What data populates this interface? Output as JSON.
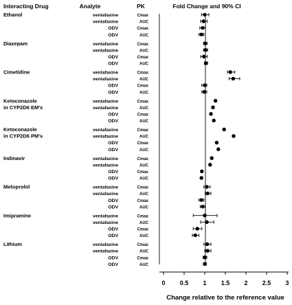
{
  "chart_data": {
    "type": "forest",
    "title": "Fold Change and 90% CI",
    "column_headers": {
      "drug": "Interacting Drug",
      "analyte": "Analyte",
      "pk": "PK",
      "effect": "Fold Change and 90% CI"
    },
    "xlabel": "Change relative to the reference value",
    "xlim": [
      0,
      3
    ],
    "xticks": [
      0,
      0.5,
      1,
      1.5,
      2,
      2.5,
      3
    ],
    "xtick_labels": [
      "0",
      "0.5",
      "1",
      "1.5",
      "2",
      "2.5",
      "3"
    ],
    "reference_line": 1,
    "groups": [
      {
        "drug": [
          "Ethanol"
        ],
        "rows": [
          {
            "analyte": "venlafaxine",
            "pk": "Cmax",
            "value": 1.0,
            "lo": 0.92,
            "hi": 1.1
          },
          {
            "analyte": "venlafaxine",
            "pk": "AUC",
            "value": 0.97,
            "lo": 0.9,
            "hi": 1.06
          },
          {
            "analyte": "ODV",
            "pk": "Cmax",
            "value": 0.95,
            "lo": 0.88,
            "hi": 1.02
          },
          {
            "analyte": "ODV",
            "pk": "AUC",
            "value": 0.92,
            "lo": 0.86,
            "hi": 0.98
          }
        ]
      },
      {
        "drug": [
          "Diazepam"
        ],
        "rows": [
          {
            "analyte": "venlafaxine",
            "pk": "Cmax",
            "value": 1.01,
            "lo": 0.97,
            "hi": 1.06
          },
          {
            "analyte": "venlafaxine",
            "pk": "AUC",
            "value": 1.02,
            "lo": 0.97,
            "hi": 1.07
          },
          {
            "analyte": "ODV",
            "pk": "Cmax",
            "value": 0.98,
            "lo": 0.9,
            "hi": 1.06
          },
          {
            "analyte": "ODV",
            "pk": "AUC",
            "value": 1.03,
            "lo": 0.99,
            "hi": 1.07
          }
        ]
      },
      {
        "drug": [
          "Cimetidine"
        ],
        "rows": [
          {
            "analyte": "venlafaxine",
            "pk": "Cmax",
            "value": 1.62,
            "lo": 1.55,
            "hi": 1.73
          },
          {
            "analyte": "venlafaxine",
            "pk": "AUC",
            "value": 1.69,
            "lo": 1.59,
            "hi": 1.85
          },
          {
            "analyte": "ODV",
            "pk": "Cmax",
            "value": 1.0,
            "lo": 0.93,
            "hi": 1.05
          },
          {
            "analyte": "ODV",
            "pk": "AUC",
            "value": 0.99,
            "lo": 0.93,
            "hi": 1.05
          }
        ]
      },
      {
        "drug": [
          "Ketoconazole",
          "in CYP2D6 EM's"
        ],
        "rows": [
          {
            "analyte": "venlafaxine",
            "pk": "Cmax",
            "value": 1.26,
            "lo": 1.24,
            "hi": 1.28
          },
          {
            "analyte": "venlafaxine",
            "pk": "AUC",
            "value": 1.2,
            "lo": 1.18,
            "hi": 1.22
          },
          {
            "analyte": "ODV",
            "pk": "Cmax",
            "value": 1.15,
            "lo": 1.13,
            "hi": 1.17
          },
          {
            "analyte": "ODV",
            "pk": "AUC",
            "value": 1.22,
            "lo": 1.2,
            "hi": 1.24
          }
        ]
      },
      {
        "drug": [
          "Ketoconazole",
          "in CYP2D6 PM's"
        ],
        "rows": [
          {
            "analyte": "venlafaxine",
            "pk": "Cmax",
            "value": 1.47,
            "lo": 1.45,
            "hi": 1.49
          },
          {
            "analyte": "venlafaxine",
            "pk": "AUC",
            "value": 1.7,
            "lo": 1.68,
            "hi": 1.72
          },
          {
            "analyte": "ODV",
            "pk": "Cmax",
            "value": 1.29,
            "lo": 1.27,
            "hi": 1.31
          },
          {
            "analyte": "ODV",
            "pk": "AUC",
            "value": 1.33,
            "lo": 1.31,
            "hi": 1.35
          }
        ]
      },
      {
        "drug": [
          "Indinavir"
        ],
        "rows": [
          {
            "analyte": "venlafaxine",
            "pk": "Cmax",
            "value": 1.17,
            "lo": 1.15,
            "hi": 1.19
          },
          {
            "analyte": "venlafaxine",
            "pk": "AUC",
            "value": 1.13,
            "lo": 1.11,
            "hi": 1.15
          },
          {
            "analyte": "ODV",
            "pk": "Cmax",
            "value": 0.93,
            "lo": 0.91,
            "hi": 0.95
          },
          {
            "analyte": "ODV",
            "pk": "AUC",
            "value": 0.92,
            "lo": 0.9,
            "hi": 0.94
          }
        ]
      },
      {
        "drug": [
          "Metoprolol"
        ],
        "rows": [
          {
            "analyte": "venlafaxine",
            "pk": "Cmax",
            "value": 1.05,
            "lo": 0.98,
            "hi": 1.13
          },
          {
            "analyte": "venlafaxine",
            "pk": "AUC",
            "value": 1.07,
            "lo": 1.01,
            "hi": 1.15
          },
          {
            "analyte": "ODV",
            "pk": "Cmax",
            "value": 0.92,
            "lo": 0.86,
            "hi": 0.98
          },
          {
            "analyte": "ODV",
            "pk": "AUC",
            "value": 0.95,
            "lo": 0.89,
            "hi": 1.01
          }
        ]
      },
      {
        "drug": [
          "Imipramine"
        ],
        "rows": [
          {
            "analyte": "venlafaxine",
            "pk": "Cmax",
            "value": 1.0,
            "lo": 0.72,
            "hi": 1.3
          },
          {
            "analyte": "venlafaxine",
            "pk": "AUC",
            "value": 1.05,
            "lo": 0.9,
            "hi": 1.22
          },
          {
            "analyte": "ODV",
            "pk": "Cmax",
            "value": 0.82,
            "lo": 0.72,
            "hi": 0.93
          },
          {
            "analyte": "ODV",
            "pk": "AUC",
            "value": 0.77,
            "lo": 0.7,
            "hi": 0.86
          }
        ]
      },
      {
        "drug": [
          "Lithium"
        ],
        "rows": [
          {
            "analyte": "venlafaxine",
            "pk": "Cmax",
            "value": 1.06,
            "lo": 0.98,
            "hi": 1.15
          },
          {
            "analyte": "venlafaxine",
            "pk": "AUC",
            "value": 1.07,
            "lo": 1.0,
            "hi": 1.15
          },
          {
            "analyte": "ODV",
            "pk": "Cmax",
            "value": 1.0,
            "lo": 0.96,
            "hi": 1.05
          },
          {
            "analyte": "ODV",
            "pk": "AUC",
            "value": 1.0,
            "lo": 0.97,
            "hi": 1.04
          }
        ]
      }
    ]
  }
}
